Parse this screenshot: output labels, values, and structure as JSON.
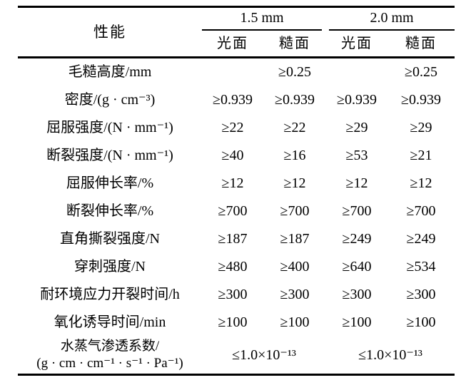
{
  "table": {
    "header": {
      "property_label": "性能",
      "groups": [
        {
          "label": "1.5 mm",
          "subcolumns": [
            "光面",
            "糙面"
          ]
        },
        {
          "label": "2.0 mm",
          "subcolumns": [
            "光面",
            "糙面"
          ]
        }
      ]
    },
    "rows": [
      {
        "label": "毛糙高度/mm",
        "values": [
          "",
          "≥0.25",
          "",
          "≥0.25"
        ]
      },
      {
        "label": "密度/(g · cm⁻³)",
        "values": [
          "≥0.939",
          "≥0.939",
          "≥0.939",
          "≥0.939"
        ]
      },
      {
        "label": "屈服强度/(N · mm⁻¹)",
        "values": [
          "≥22",
          "≥22",
          "≥29",
          "≥29"
        ]
      },
      {
        "label": "断裂强度/(N · mm⁻¹)",
        "values": [
          "≥40",
          "≥16",
          "≥53",
          "≥21"
        ]
      },
      {
        "label": "屈服伸长率/%",
        "values": [
          "≥12",
          "≥12",
          "≥12",
          "≥12"
        ]
      },
      {
        "label": "断裂伸长率/%",
        "values": [
          "≥700",
          "≥700",
          "≥700",
          "≥700"
        ]
      },
      {
        "label": "直角撕裂强度/N",
        "values": [
          "≥187",
          "≥187",
          "≥249",
          "≥249"
        ]
      },
      {
        "label": "穿刺强度/N",
        "values": [
          "≥480",
          "≥400",
          "≥640",
          "≥534"
        ]
      },
      {
        "label": "耐环境应力开裂时间/h",
        "values": [
          "≥300",
          "≥300",
          "≥300",
          "≥300"
        ]
      },
      {
        "label": "氧化诱导时间/min",
        "values": [
          "≥100",
          "≥100",
          "≥100",
          "≥100"
        ]
      },
      {
        "label_line1": "水蒸气渗透系数/",
        "label_line2": "(g · cm · cm⁻¹ · s⁻¹ · Pa⁻¹)",
        "values_span": [
          "≤1.0×10⁻¹³",
          "≤1.0×10⁻¹³"
        ]
      }
    ]
  },
  "colors": {
    "background": "#ffffff",
    "text": "#000000",
    "rule": "#000000"
  }
}
